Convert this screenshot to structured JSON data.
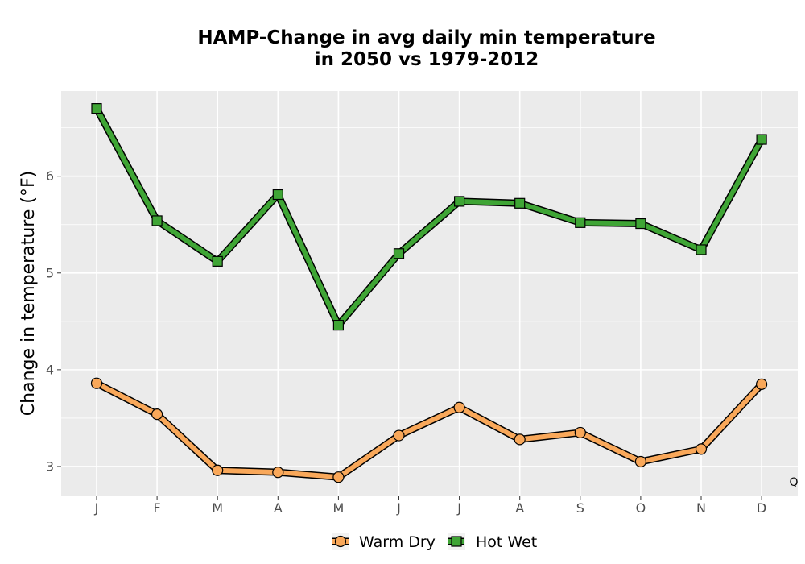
{
  "chart_data": {
    "type": "line",
    "title_line1": "HAMP-Change in avg daily min temperature",
    "title_line2": "in 2050 vs 1979-2012",
    "xlabel": "",
    "ylabel": "Change in temperature (°F)",
    "categories": [
      "J",
      "F",
      "M",
      "A",
      "M",
      "J",
      "J",
      "A",
      "S",
      "O",
      "N",
      "D"
    ],
    "ylim": [
      2.7,
      6.88
    ],
    "yticks": [
      3,
      4,
      5,
      6
    ],
    "grid": true,
    "legend_position": "bottom",
    "corner_label": "Q",
    "series": [
      {
        "name": "Warm Dry",
        "marker": "circle",
        "color": "#f9a85a",
        "values": [
          3.86,
          3.54,
          2.96,
          2.94,
          2.89,
          3.32,
          3.61,
          3.28,
          3.35,
          3.05,
          3.18,
          3.85
        ]
      },
      {
        "name": "Hot Wet",
        "marker": "square",
        "color": "#3fa535",
        "values": [
          6.7,
          5.54,
          5.12,
          5.81,
          4.46,
          5.2,
          5.74,
          5.72,
          5.52,
          5.51,
          5.24,
          6.38
        ]
      }
    ]
  }
}
